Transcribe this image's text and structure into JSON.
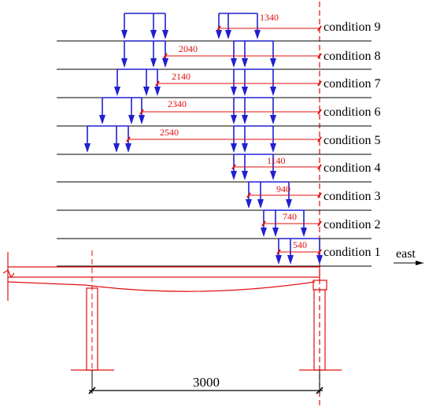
{
  "conditions": [
    {
      "label": "condition 9",
      "distance": "1340"
    },
    {
      "label": "condition 8",
      "distance": "2040"
    },
    {
      "label": "condition 7",
      "distance": "2140"
    },
    {
      "label": "condition 6",
      "distance": "2340"
    },
    {
      "label": "condition 5",
      "distance": "2540"
    },
    {
      "label": "condition 4",
      "distance": "1140"
    },
    {
      "label": "condition 3",
      "distance": "940"
    },
    {
      "label": "condition 2",
      "distance": "740"
    },
    {
      "label": "condition 1",
      "distance": "540"
    }
  ],
  "direction_label": "east",
  "span_label": "3000",
  "colors": {
    "load_arrows": "#2020d0",
    "dimensions": "#e01010",
    "lines": "#000000"
  }
}
